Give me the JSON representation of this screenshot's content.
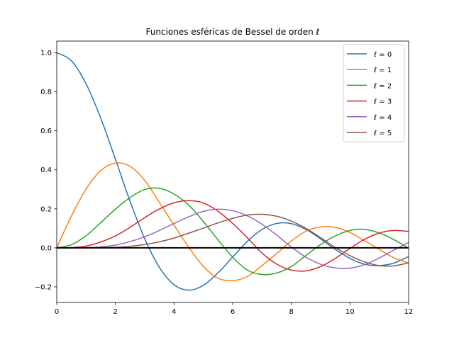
{
  "chart_data": {
    "type": "line",
    "title": "Funciones esféricas de Bessel de orden ℓ",
    "xlabel": "",
    "ylabel": "",
    "xlim": [
      0,
      12
    ],
    "ylim": [
      -0.28,
      1.06
    ],
    "x_ticks": [
      0,
      2,
      4,
      6,
      8,
      10,
      12
    ],
    "x_tick_labels": [
      "0",
      "2",
      "4",
      "6",
      "8",
      "10",
      "12"
    ],
    "y_ticks": [
      -0.2,
      0.0,
      0.2,
      0.4,
      0.6,
      0.8,
      1.0
    ],
    "y_tick_labels": [
      "−0.2",
      "0.0",
      "0.2",
      "0.4",
      "0.6",
      "0.8",
      "1.0"
    ],
    "grid": false,
    "legend_position": "top-right",
    "reference_line": {
      "y": 0,
      "color": "#000000"
    },
    "x": [
      0.0,
      0.5,
      1.0,
      1.5,
      2.0,
      2.5,
      3.0,
      3.5,
      4.0,
      4.5,
      5.0,
      5.5,
      6.0,
      6.5,
      7.0,
      7.5,
      8.0,
      8.5,
      9.0,
      9.5,
      10.0,
      10.5,
      11.0,
      11.5,
      12.0
    ],
    "series": [
      {
        "name": "ℓ = 0",
        "color": "#1f77b4",
        "values": [
          1.0,
          0.959,
          0.841,
          0.665,
          0.455,
          0.239,
          0.047,
          -0.1,
          -0.189,
          -0.217,
          -0.192,
          -0.128,
          -0.047,
          0.033,
          0.094,
          0.125,
          0.124,
          0.094,
          0.046,
          -0.008,
          -0.054,
          -0.084,
          -0.091,
          -0.078,
          -0.045
        ]
      },
      {
        "name": "ℓ = 1",
        "color": "#ff7f0e",
        "values": [
          0.0,
          0.163,
          0.301,
          0.396,
          0.435,
          0.418,
          0.346,
          0.233,
          0.116,
          0.003,
          -0.095,
          -0.156,
          -0.168,
          -0.147,
          -0.091,
          -0.029,
          0.035,
          0.085,
          0.107,
          0.105,
          0.079,
          0.036,
          -0.008,
          -0.051,
          -0.078
        ]
      },
      {
        "name": "ℓ = 2",
        "color": "#2ca02c",
        "values": [
          0.0,
          0.016,
          0.062,
          0.129,
          0.198,
          0.258,
          0.299,
          0.305,
          0.276,
          0.219,
          0.135,
          0.041,
          -0.048,
          -0.114,
          -0.137,
          -0.129,
          -0.096,
          -0.039,
          0.017,
          0.061,
          0.089,
          0.095,
          0.076,
          0.042,
          -0.002
        ]
      },
      {
        "name": "ℓ = 3",
        "color": "#d62728",
        "values": [
          0.0,
          0.001,
          0.009,
          0.03,
          0.061,
          0.105,
          0.155,
          0.199,
          0.231,
          0.242,
          0.23,
          0.188,
          0.125,
          0.052,
          -0.027,
          -0.083,
          -0.114,
          -0.118,
          -0.096,
          -0.054,
          -0.003,
          0.044,
          0.076,
          0.089,
          0.084
        ]
      },
      {
        "name": "ℓ = 4",
        "color": "#9467bd",
        "values": [
          0.0,
          0.0,
          0.001,
          0.005,
          0.014,
          0.032,
          0.057,
          0.089,
          0.125,
          0.159,
          0.187,
          0.198,
          0.19,
          0.164,
          0.121,
          0.065,
          0.005,
          -0.048,
          -0.084,
          -0.103,
          -0.104,
          -0.086,
          -0.052,
          -0.011,
          0.027
        ]
      },
      {
        "name": "ℓ = 5",
        "color": "#8c564b",
        "values": [
          0.0,
          0.0,
          0.0,
          0.001,
          0.003,
          0.008,
          0.017,
          0.031,
          0.05,
          0.075,
          0.101,
          0.128,
          0.151,
          0.168,
          0.172,
          0.162,
          0.137,
          0.1,
          0.052,
          0.002,
          -0.04,
          -0.072,
          -0.091,
          -0.092,
          -0.077
        ]
      }
    ]
  }
}
